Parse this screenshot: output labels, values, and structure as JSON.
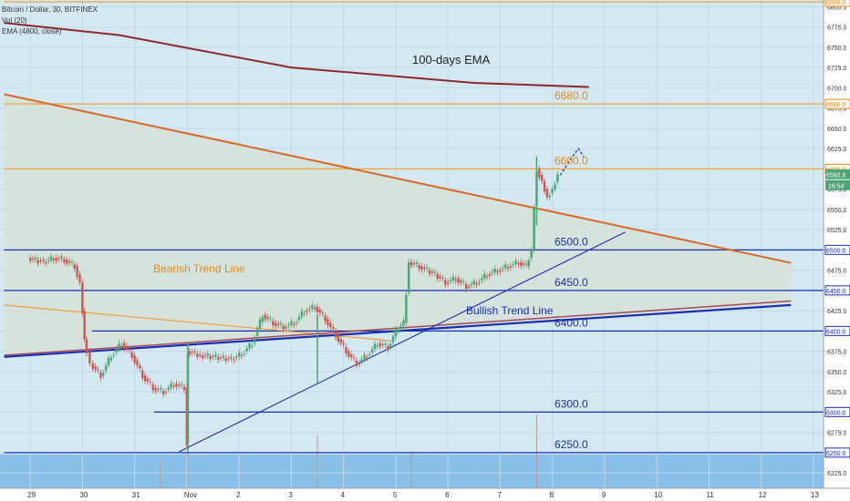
{
  "header": {
    "symbol_line": "Bitcoin / Dollar, 30, BITFINEX",
    "vol_line": "Vol (20)",
    "ema_line": "EMA (4800, close)"
  },
  "price_axis": {
    "labels": [
      "6800.0",
      "6775.0",
      "6750.0",
      "6725.0",
      "6700.0",
      "6675.0",
      "6650.0",
      "6625.0",
      "6600.0",
      "6575.0",
      "6550.0",
      "6525.0",
      "6500.0",
      "6475.0",
      "6450.0",
      "6425.0",
      "6400.0",
      "6375.0",
      "6350.0",
      "6325.0",
      "6300.0",
      "6275.0",
      "6250.0",
      "6225.0"
    ],
    "current_price": "6592.8",
    "countdown": "16:54"
  },
  "time_axis": {
    "labels": [
      "29",
      "30",
      "31",
      "Nov",
      "2",
      "3",
      "4",
      "5",
      "6",
      "7",
      "8",
      "9",
      "10",
      "11",
      "12",
      "13"
    ]
  },
  "annotations": {
    "ema_label": "100-days EMA",
    "bearish_label": "Bearish Trend Line",
    "bullish_label": "Bullish Trend Line",
    "level_6680": "6680.0",
    "level_6600": "6600.0",
    "level_6500": "6500.0",
    "level_6450": "6450.0",
    "level_6400": "6400.0",
    "level_6300": "6300.0",
    "level_6250": "6250.0"
  },
  "colors": {
    "background": "#d4e8f2",
    "wedge_fill": "#d6e2d8",
    "up_candle": "#4aa672",
    "down_candle": "#c65a52",
    "ema_line": "#8a2a2e",
    "resistance": "#f0a040",
    "support": "#1a2fb0",
    "volume": "#88c0ea"
  },
  "chart_data": {
    "type": "candlestick",
    "title": "Bitcoin / Dollar, 30, BITFINEX",
    "ylim": [
      6218,
      6806
    ],
    "xlim_days": [
      -0.5,
      14.57
    ],
    "x_label_days": [
      0,
      1,
      2,
      3,
      4,
      5,
      6,
      7,
      8,
      9,
      10,
      11,
      12,
      13,
      14,
      15
    ],
    "price_path": [
      [
        0.0,
        6490
      ],
      [
        0.3,
        6485
      ],
      [
        0.5,
        6490
      ],
      [
        0.7,
        6488
      ],
      [
        0.9,
        6480
      ],
      [
        1.0,
        6460
      ],
      [
        1.08,
        6390
      ],
      [
        1.2,
        6360
      ],
      [
        1.4,
        6345
      ],
      [
        1.6,
        6370
      ],
      [
        1.8,
        6385
      ],
      [
        2.0,
        6370
      ],
      [
        2.2,
        6345
      ],
      [
        2.4,
        6330
      ],
      [
        2.6,
        6325
      ],
      [
        2.8,
        6335
      ],
      [
        3.0,
        6330
      ],
      [
        3.02,
        6262
      ],
      [
        3.05,
        6375
      ],
      [
        3.3,
        6370
      ],
      [
        3.6,
        6368
      ],
      [
        3.9,
        6365
      ],
      [
        4.1,
        6372
      ],
      [
        4.3,
        6385
      ],
      [
        4.5,
        6420
      ],
      [
        4.7,
        6410
      ],
      [
        4.9,
        6405
      ],
      [
        5.1,
        6410
      ],
      [
        5.3,
        6425
      ],
      [
        5.5,
        6430
      ],
      [
        5.7,
        6415
      ],
      [
        5.9,
        6395
      ],
      [
        6.1,
        6375
      ],
      [
        6.3,
        6360
      ],
      [
        6.5,
        6370
      ],
      [
        6.7,
        6385
      ],
      [
        6.9,
        6380
      ],
      [
        7.05,
        6400
      ],
      [
        7.2,
        6410
      ],
      [
        7.3,
        6485
      ],
      [
        7.5,
        6480
      ],
      [
        7.8,
        6470
      ],
      [
        8.0,
        6460
      ],
      [
        8.2,
        6465
      ],
      [
        8.4,
        6455
      ],
      [
        8.6,
        6460
      ],
      [
        8.8,
        6470
      ],
      [
        9.0,
        6475
      ],
      [
        9.2,
        6480
      ],
      [
        9.4,
        6485
      ],
      [
        9.55,
        6480
      ],
      [
        9.65,
        6500
      ],
      [
        9.7,
        6555
      ],
      [
        9.75,
        6600
      ],
      [
        9.85,
        6585
      ],
      [
        9.95,
        6565
      ],
      [
        10.05,
        6575
      ],
      [
        10.15,
        6593
      ]
    ],
    "spikes": [
      {
        "day": 3.02,
        "low": 6252,
        "high": 6385
      },
      {
        "day": 5.5,
        "low": 6335,
        "high": 6420
      },
      {
        "day": 9.7,
        "low": 6530,
        "high": 6615
      }
    ],
    "horizontal_levels": [
      {
        "price": 6806,
        "color": "resistance",
        "day_from": -0.5
      },
      {
        "price": 6680,
        "color": "resistance",
        "day_from": -0.5
      },
      {
        "price": 6600,
        "color": "resistance",
        "day_from": -0.5
      },
      {
        "price": 6500,
        "color": "support",
        "day_from": -0.5
      },
      {
        "price": 6450,
        "color": "support",
        "day_from": -0.5
      },
      {
        "price": 6400,
        "color": "support",
        "day_from": 1.18
      },
      {
        "price": 6300,
        "color": "support",
        "day_from": 2.37
      },
      {
        "price": 6250,
        "color": "support",
        "day_from": -0.5
      }
    ],
    "ema": [
      [
        -0.5,
        6780
      ],
      [
        1.7,
        6765
      ],
      [
        5.0,
        6725
      ],
      [
        8.5,
        6706
      ],
      [
        10.7,
        6701
      ]
    ],
    "bearish_resistance_line": [
      [
        -0.5,
        6692
      ],
      [
        14.57,
        6484
      ]
    ],
    "bearish_trend_line": [
      [
        -0.5,
        6432
      ],
      [
        6.9,
        6388
      ]
    ],
    "bullish_trend_line": [
      [
        2.85,
        6251
      ],
      [
        11.4,
        6522
      ]
    ],
    "bullish_channel_blue": [
      [
        -0.5,
        6368
      ],
      [
        14.57,
        6432
      ]
    ],
    "bullish_channel_red": [
      [
        -0.5,
        6370
      ],
      [
        14.57,
        6437
      ]
    ],
    "projection_arrow": [
      [
        10.15,
        6592
      ],
      [
        10.35,
        6612
      ],
      [
        10.5,
        6625
      ],
      [
        10.6,
        6615
      ]
    ],
    "volume_spikes": [
      [
        3.02,
        0.8
      ],
      [
        5.5,
        0.65
      ],
      [
        9.7,
        0.9
      ],
      [
        2.5,
        0.35
      ],
      [
        7.3,
        0.45
      ]
    ]
  }
}
